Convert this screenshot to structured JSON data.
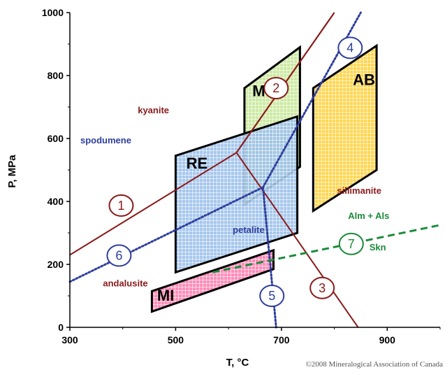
{
  "chart_data": {
    "type": "phase-diagram",
    "xlabel": "T, °C",
    "ylabel": "P, MPa",
    "xlim": [
      300,
      1000
    ],
    "ylim": [
      0,
      1000
    ],
    "x_ticks": [
      "300",
      "500",
      "700",
      "900"
    ],
    "x_tick_values": [
      300,
      500,
      700,
      900
    ],
    "y_ticks": [
      "0",
      "200",
      "400",
      "600",
      "800",
      "1000"
    ],
    "y_tick_values": [
      0,
      200,
      400,
      600,
      800,
      1000
    ],
    "fields": [
      {
        "name": "MS",
        "color": "#8fd14f",
        "polygon": [
          [
            630,
            760
          ],
          [
            735,
            890
          ],
          [
            735,
            510
          ],
          [
            630,
            390
          ]
        ],
        "label_at": [
          645,
          735
        ]
      },
      {
        "name": "AB",
        "color": "#ffd23f",
        "polygon": [
          [
            760,
            760
          ],
          [
            880,
            895
          ],
          [
            880,
            500
          ],
          [
            760,
            370
          ]
        ],
        "label_at": [
          835,
          770
        ]
      },
      {
        "name": "RE",
        "color": "#7fb2e5",
        "polygon": [
          [
            500,
            545
          ],
          [
            730,
            670
          ],
          [
            730,
            300
          ],
          [
            500,
            175
          ]
        ],
        "label_at": [
          520,
          505
        ]
      },
      {
        "name": "MI",
        "color": "#ff6fa8",
        "polygon": [
          [
            455,
            115
          ],
          [
            685,
            245
          ],
          [
            685,
            185
          ],
          [
            455,
            50
          ]
        ],
        "label_at": [
          465,
          85
        ]
      }
    ],
    "curves": [
      {
        "id": "1",
        "style": "solid",
        "color": "#8b1a1a",
        "points": [
          [
            300,
            230
          ],
          [
            615,
            555
          ],
          [
            800,
            1000
          ]
        ],
        "label_at": [
          397,
          387
        ]
      },
      {
        "id": "2",
        "style": "solid",
        "color": "#8b1a1a",
        "points": [
          [
            615,
            555
          ],
          [
            800,
            1000
          ]
        ],
        "label_at": [
          690,
          760
        ]
      },
      {
        "id": "3",
        "style": "solid",
        "color": "#8b1a1a",
        "points": [
          [
            615,
            555
          ],
          [
            845,
            0
          ]
        ],
        "label_at": [
          777,
          125
        ]
      },
      {
        "id": "4",
        "style": "dotted",
        "color": "#2e3e9e",
        "points": [
          [
            665,
            445
          ],
          [
            850,
            1000
          ]
        ],
        "label_at": [
          830,
          888
        ]
      },
      {
        "id": "5",
        "style": "dotted",
        "color": "#2e3e9e",
        "points": [
          [
            665,
            445
          ],
          [
            690,
            0
          ]
        ],
        "label_at": [
          682,
          100
        ]
      },
      {
        "id": "6",
        "style": "dotted",
        "color": "#2e3e9e",
        "points": [
          [
            300,
            145
          ],
          [
            665,
            445
          ]
        ],
        "label_at": [
          393,
          228
        ]
      },
      {
        "id": "7",
        "style": "dashed",
        "color": "#1a8a3a",
        "points": [
          [
            570,
            175
          ],
          [
            1000,
            325
          ]
        ],
        "label_at": [
          832,
          265
        ]
      }
    ],
    "mineral_labels": [
      {
        "text": "kyanite",
        "color": "#8b1a1a",
        "at": [
          458,
          680
        ]
      },
      {
        "text": "spodumene",
        "color": "#2e3e9e",
        "at": [
          368,
          585
        ]
      },
      {
        "text": "sillimanite",
        "color": "#8b1a1a",
        "at": [
          847,
          425
        ]
      },
      {
        "text": "petalite",
        "color": "#2e3e9e",
        "at": [
          638,
          300
        ]
      },
      {
        "text": "andalusite",
        "color": "#8b1a1a",
        "at": [
          405,
          130
        ]
      },
      {
        "text": "Alm + Als",
        "color": "#1a8a3a",
        "at": [
          865,
          345
        ]
      },
      {
        "text": "Skn",
        "color": "#1a8a3a",
        "at": [
          882,
          245
        ]
      }
    ]
  },
  "copyright": "©2008 Mineralogical Association of Canada"
}
